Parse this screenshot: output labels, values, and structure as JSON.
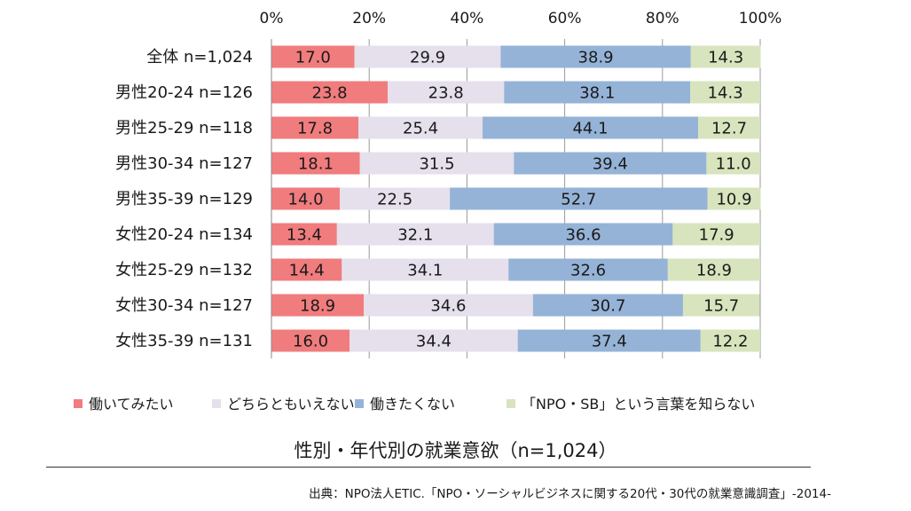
{
  "chart_data": {
    "type": "bar",
    "orientation": "horizontal",
    "stacked": true,
    "title": "性別・年代別の就業意欲（n=1,024）",
    "xlabel": "",
    "ylabel": "",
    "xlim": [
      0,
      100
    ],
    "x_ticks": [
      "0%",
      "20%",
      "40%",
      "60%",
      "80%",
      "100%"
    ],
    "grid": true,
    "legend_position": "bottom",
    "categories": [
      "全体 n=1,024",
      "男性20-24 n=126",
      "男性25-29 n=118",
      "男性30-34 n=127",
      "男性35-39 n=129",
      "女性20-24 n=134",
      "女性25-29 n=132",
      "女性30-34 n=127",
      "女性35-39 n=131"
    ],
    "series": [
      {
        "name": "働いてみたい",
        "color": "#f07c7e",
        "values": [
          17.0,
          23.8,
          17.8,
          18.1,
          14.0,
          13.4,
          14.4,
          18.9,
          16.0
        ],
        "labels": [
          "17.0",
          "23.8",
          "17.8",
          "18.1",
          "14.0",
          "13.4",
          "14.4",
          "18.9",
          "16.0"
        ]
      },
      {
        "name": "どちらともいえない",
        "color": "#e5e0ec",
        "values": [
          29.9,
          23.8,
          25.4,
          31.5,
          22.5,
          32.1,
          34.1,
          34.6,
          34.4
        ],
        "labels": [
          "29.9",
          "23.8",
          "25.4",
          "31.5",
          "22.5",
          "32.1",
          "34.1",
          "34.6",
          "34.4"
        ]
      },
      {
        "name": "働きたくない",
        "color": "#95b3d7",
        "values": [
          38.9,
          38.1,
          44.1,
          39.4,
          52.7,
          36.6,
          32.6,
          30.7,
          37.4
        ],
        "labels": [
          "38.9",
          "38.1",
          "44.1",
          "39.4",
          "52.7",
          "36.6",
          "32.6",
          "30.7",
          "37.4"
        ]
      },
      {
        "name": "「NPO・SB」という言葉を知らない",
        "color": "#d7e4bd",
        "values": [
          14.3,
          14.3,
          12.7,
          11.0,
          10.9,
          17.9,
          18.9,
          15.7,
          12.2
        ],
        "labels": [
          "14.3",
          "14.3",
          "12.7",
          "11.0",
          "10.9",
          "17.9",
          "18.9",
          "15.7",
          "12.2"
        ]
      }
    ]
  },
  "footer": {
    "source": "出典：NPO法人ETIC.「NPO・ソーシャルビジネスに関する20代・30代の就業意識調査」-2014-"
  }
}
